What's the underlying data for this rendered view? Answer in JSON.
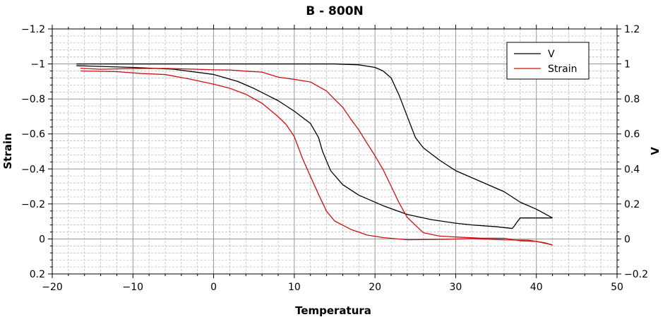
{
  "chart_data": {
    "type": "line",
    "title": "B  -  800N",
    "xlabel": "Temperatura",
    "ylabel": "Strain",
    "y2label": "V",
    "xlim": [
      -20,
      50
    ],
    "ylim": [
      0.2,
      -1.2
    ],
    "y2lim": [
      -0.2,
      1.2
    ],
    "x_ticks": [
      "−20",
      "−10",
      "0",
      "10",
      "20",
      "30",
      "40",
      "50"
    ],
    "y_ticks": [
      "−1.2",
      "−1",
      "−0.8",
      "−0.6",
      "−0.4",
      "−0.2",
      "0",
      "0.2"
    ],
    "y2_ticks": [
      "1.2",
      "1",
      "0.8",
      "0.6",
      "0.4",
      "0.2",
      "0",
      "−0.2"
    ],
    "grid": "on (major solid, minor dashed)",
    "legend_position": "top-right",
    "colors": {
      "V": "#000000",
      "Strain": "#d01010"
    },
    "series": [
      {
        "name": "V",
        "axis": "right",
        "branches": [
          [
            [
              -17,
              1.0
            ],
            [
              -10,
              1.0
            ],
            [
              0,
              1.0
            ],
            [
              5,
              1.0
            ],
            [
              10,
              1.0
            ],
            [
              15,
              1.0
            ],
            [
              18,
              0.995
            ],
            [
              20,
              0.98
            ],
            [
              21,
              0.96
            ],
            [
              22,
              0.92
            ],
            [
              23,
              0.82
            ],
            [
              24,
              0.7
            ],
            [
              25,
              0.58
            ],
            [
              26,
              0.52
            ],
            [
              28,
              0.45
            ],
            [
              30,
              0.39
            ],
            [
              33,
              0.33
            ],
            [
              36,
              0.27
            ],
            [
              38,
              0.21
            ],
            [
              40,
              0.17
            ],
            [
              42,
              0.12
            ]
          ],
          [
            [
              42,
              0.12
            ],
            [
              40,
              0.12
            ],
            [
              38,
              0.12
            ],
            [
              37.5,
              0.09
            ],
            [
              37.2,
              0.07
            ],
            [
              37,
              0.06
            ],
            [
              35,
              0.07
            ],
            [
              32,
              0.08
            ],
            [
              30,
              0.09
            ],
            [
              27,
              0.11
            ],
            [
              24,
              0.14
            ],
            [
              21,
              0.19
            ],
            [
              18,
              0.25
            ],
            [
              16,
              0.31
            ],
            [
              14.5,
              0.39
            ],
            [
              13.5,
              0.5
            ],
            [
              13,
              0.58
            ],
            [
              12,
              0.66
            ],
            [
              10,
              0.73
            ],
            [
              8,
              0.79
            ],
            [
              5,
              0.86
            ],
            [
              3,
              0.9
            ],
            [
              0,
              0.94
            ],
            [
              -5,
              0.97
            ],
            [
              -10,
              0.98
            ],
            [
              -17,
              0.99
            ]
          ]
        ]
      },
      {
        "name": "Strain",
        "axis": "left",
        "branches": [
          [
            [
              -16.5,
              -0.96
            ],
            [
              -12,
              -0.96
            ],
            [
              -9,
              -0.95
            ],
            [
              -6,
              -0.94
            ],
            [
              -3,
              -0.91
            ],
            [
              0,
              -0.88
            ],
            [
              2,
              -0.86
            ],
            [
              4,
              -0.83
            ],
            [
              6,
              -0.78
            ],
            [
              8,
              -0.7
            ],
            [
              9,
              -0.65
            ],
            [
              10,
              -0.58
            ],
            [
              11,
              -0.46
            ],
            [
              12,
              -0.36
            ],
            [
              13,
              -0.26
            ],
            [
              14,
              -0.16
            ],
            [
              15,
              -0.1
            ],
            [
              17,
              -0.05
            ],
            [
              19,
              -0.02
            ],
            [
              21,
              -0.01
            ],
            [
              24,
              0.0
            ],
            [
              28,
              0.0
            ],
            [
              32,
              0.0
            ],
            [
              36,
              0.01
            ],
            [
              39,
              0.01
            ],
            [
              41,
              0.02
            ],
            [
              42,
              0.03
            ]
          ],
          [
            [
              42,
              0.03
            ],
            [
              40,
              0.01
            ],
            [
              38,
              0.01
            ],
            [
              36,
              0.0
            ],
            [
              33,
              0.0
            ],
            [
              30,
              -0.01
            ],
            [
              28,
              -0.02
            ],
            [
              26,
              -0.04
            ],
            [
              25,
              -0.08
            ],
            [
              24,
              -0.12
            ],
            [
              23,
              -0.2
            ],
            [
              22,
              -0.3
            ],
            [
              21,
              -0.4
            ],
            [
              20,
              -0.48
            ],
            [
              19,
              -0.55
            ],
            [
              18,
              -0.62
            ],
            [
              17,
              -0.68
            ],
            [
              16,
              -0.75
            ],
            [
              15,
              -0.8
            ],
            [
              14,
              -0.85
            ],
            [
              12,
              -0.9
            ],
            [
              10,
              -0.91
            ],
            [
              8,
              -0.92
            ],
            [
              6,
              -0.95
            ],
            [
              4,
              -0.96
            ],
            [
              2,
              -0.97
            ],
            [
              0,
              -0.97
            ],
            [
              -3,
              -0.97
            ],
            [
              -6,
              -0.97
            ],
            [
              -10,
              -0.97
            ],
            [
              -14,
              -0.97
            ],
            [
              -16.5,
              -0.98
            ]
          ]
        ]
      }
    ]
  }
}
